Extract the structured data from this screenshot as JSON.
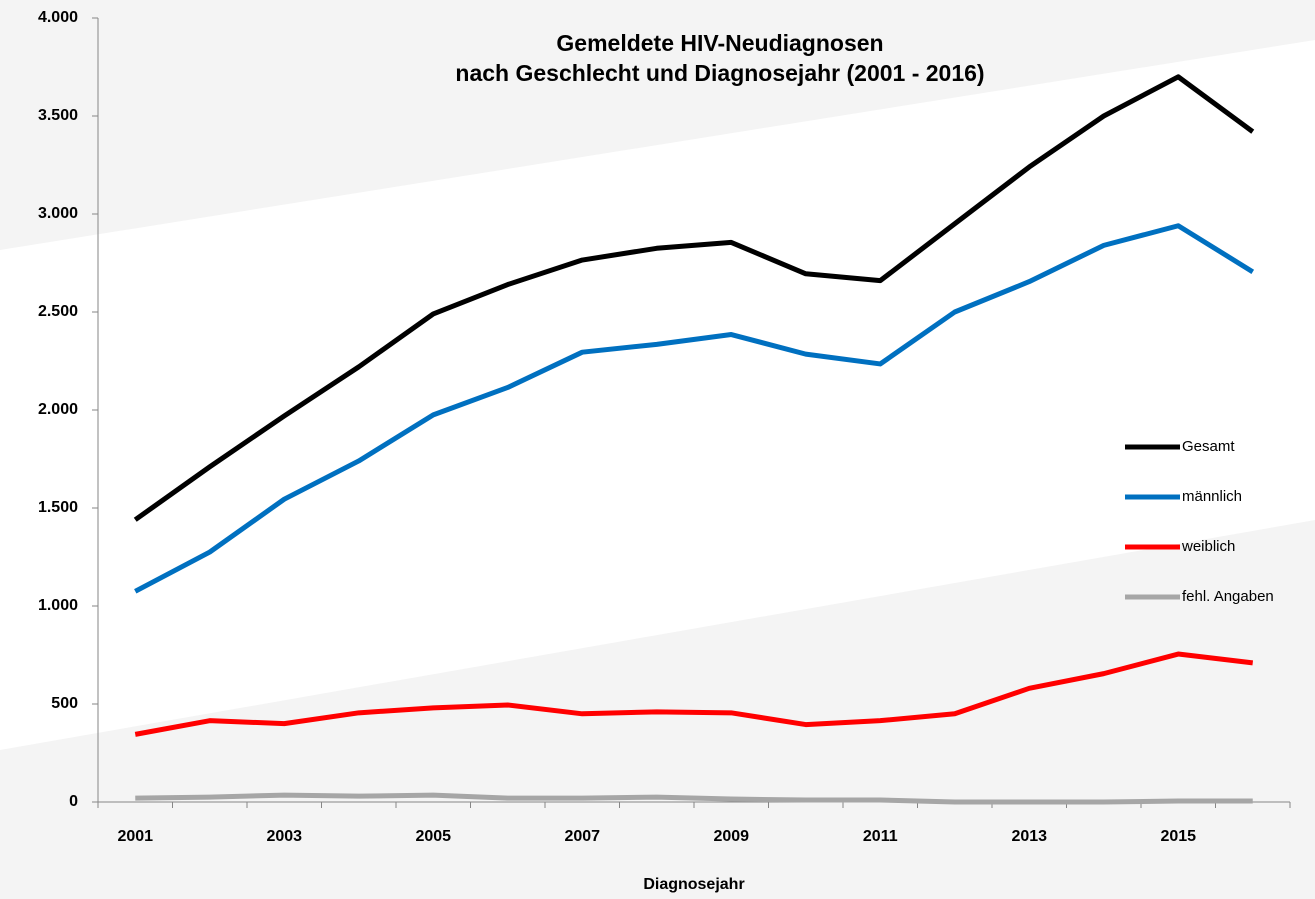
{
  "chart_data": {
    "type": "line",
    "title": [
      "Gemeldete HIV-Neudiagnosen",
      "nach Geschlecht und Diagnosejahr (2001 - 2016)"
    ],
    "x_label": "Diagnosejahr",
    "categories": [
      "2001",
      null,
      "2003",
      null,
      "2005",
      null,
      "2007",
      null,
      "2009",
      null,
      "2011",
      null,
      "2013",
      null,
      "2015",
      null
    ],
    "series": [
      {
        "name": "Gesamt",
        "color": "#000000",
        "values": [
          1440,
          1710,
          1970,
          2220,
          2490,
          2640,
          2765,
          2825,
          2855,
          2695,
          2660,
          2950,
          3240,
          3500,
          3700,
          3420
        ]
      },
      {
        "name": "männlich",
        "color": "#0070c0",
        "values": [
          1075,
          1275,
          1545,
          1740,
          1975,
          2115,
          2295,
          2335,
          2385,
          2285,
          2235,
          2500,
          2655,
          2840,
          2940,
          2705
        ]
      },
      {
        "name": "weiblich",
        "color": "#ff0000",
        "values": [
          345,
          415,
          400,
          455,
          480,
          495,
          450,
          460,
          455,
          395,
          415,
          450,
          580,
          655,
          755,
          710
        ]
      },
      {
        "name": "fehl. Angaben",
        "color": "#a6a6a6",
        "values": [
          20,
          25,
          35,
          30,
          35,
          20,
          20,
          25,
          15,
          10,
          10,
          0,
          0,
          0,
          5,
          5
        ]
      }
    ],
    "ylim": [
      0,
      4000
    ],
    "yticks": [
      0,
      500,
      {
        "value": 1000,
        "label": "1.000"
      },
      {
        "value": 1500,
        "label": "1.500"
      },
      {
        "value": 2000,
        "label": "2.000"
      },
      {
        "value": 2500,
        "label": "2.500"
      },
      {
        "value": 3000,
        "label": "3.000"
      },
      {
        "value": 3500,
        "label": "3.500"
      },
      {
        "value": 4000,
        "label": "4.000"
      }
    ],
    "legend": "right"
  }
}
